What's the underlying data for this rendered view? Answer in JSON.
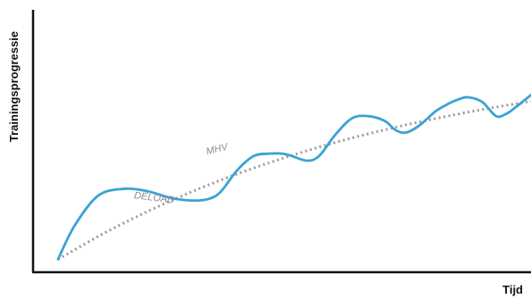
{
  "chart_data": {
    "type": "line",
    "xlabel": "Tijd",
    "ylabel": "Trainingsprogressie",
    "xlim": [
      0,
      100
    ],
    "ylim": [
      0,
      100
    ],
    "grid": false,
    "colors": {
      "progress": "#3aa3d6",
      "trend": "#9a9a9a",
      "axis": "#111111",
      "annotation": "#8c8c8c"
    },
    "series": [
      {
        "style": "solid",
        "x": [
          0,
          3.4,
          8.4,
          13.8,
          18.9,
          24.1,
          29.3,
          32.3,
          34.5,
          37.9,
          41.4,
          44.8,
          47.4,
          49.4,
          52.6,
          55.2,
          58.6,
          62.1,
          65.5,
          69.0,
          71.4,
          73.6,
          76.4,
          79.8,
          82.3,
          84.5,
          86.7,
          89.7,
          92.6,
          94.8,
          96.9,
          100
        ],
        "y": [
          4,
          18,
          31,
          34,
          33,
          30,
          29,
          30,
          33,
          42,
          48,
          49,
          49,
          48,
          46,
          48,
          57,
          64,
          65,
          63,
          59,
          58,
          61,
          67,
          70,
          72,
          73,
          71,
          65,
          66,
          69,
          74
        ]
      },
      {
        "style": "dotted",
        "x": [
          0,
          10,
          20,
          30,
          40,
          50,
          60,
          70,
          80,
          90,
          100
        ],
        "y": [
          4,
          15.4,
          25.4,
          34.2,
          41.9,
          48.6,
          54.5,
          59.6,
          64.0,
          67.9,
          71.3
        ]
      }
    ],
    "annotations": [
      {
        "text": "DELOAD",
        "x": 16,
        "y": 30
      },
      {
        "text": "MHV",
        "x": 31.5,
        "y": 48.5
      }
    ]
  }
}
